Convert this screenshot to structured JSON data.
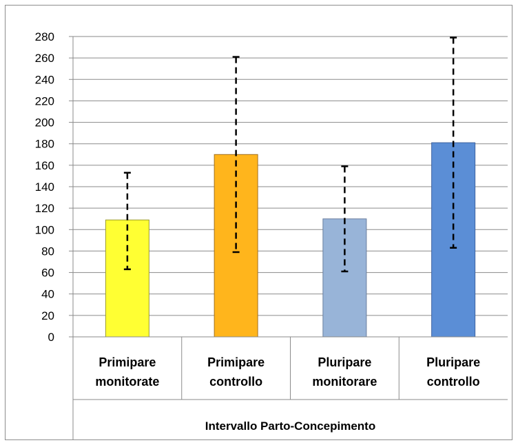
{
  "chart_data": {
    "type": "bar",
    "categories": [
      [
        "Primipare",
        "monitorate"
      ],
      [
        "Primipare",
        "controllo"
      ],
      [
        "Pluripare",
        "monitorare"
      ],
      [
        "Pluripare",
        "controllo"
      ]
    ],
    "values": [
      109,
      170,
      110,
      181
    ],
    "error_low": [
      63,
      79,
      61,
      83
    ],
    "error_high": [
      153,
      261,
      159,
      279
    ],
    "colors": [
      "#ffff33",
      "#ffb51c",
      "#98b4d8",
      "#5b8ed6"
    ],
    "border_colors": [
      "#9a9a30",
      "#a07020",
      "#6a7f9f",
      "#3c62a0"
    ],
    "title": "",
    "xlabel": "Intervallo Parto-Concepimento",
    "ylabel": "",
    "ylim": [
      0,
      280
    ],
    "yticks": [
      0,
      20,
      40,
      60,
      80,
      100,
      120,
      140,
      160,
      180,
      200,
      220,
      240,
      260,
      280
    ],
    "grid": true,
    "legend": "none"
  }
}
